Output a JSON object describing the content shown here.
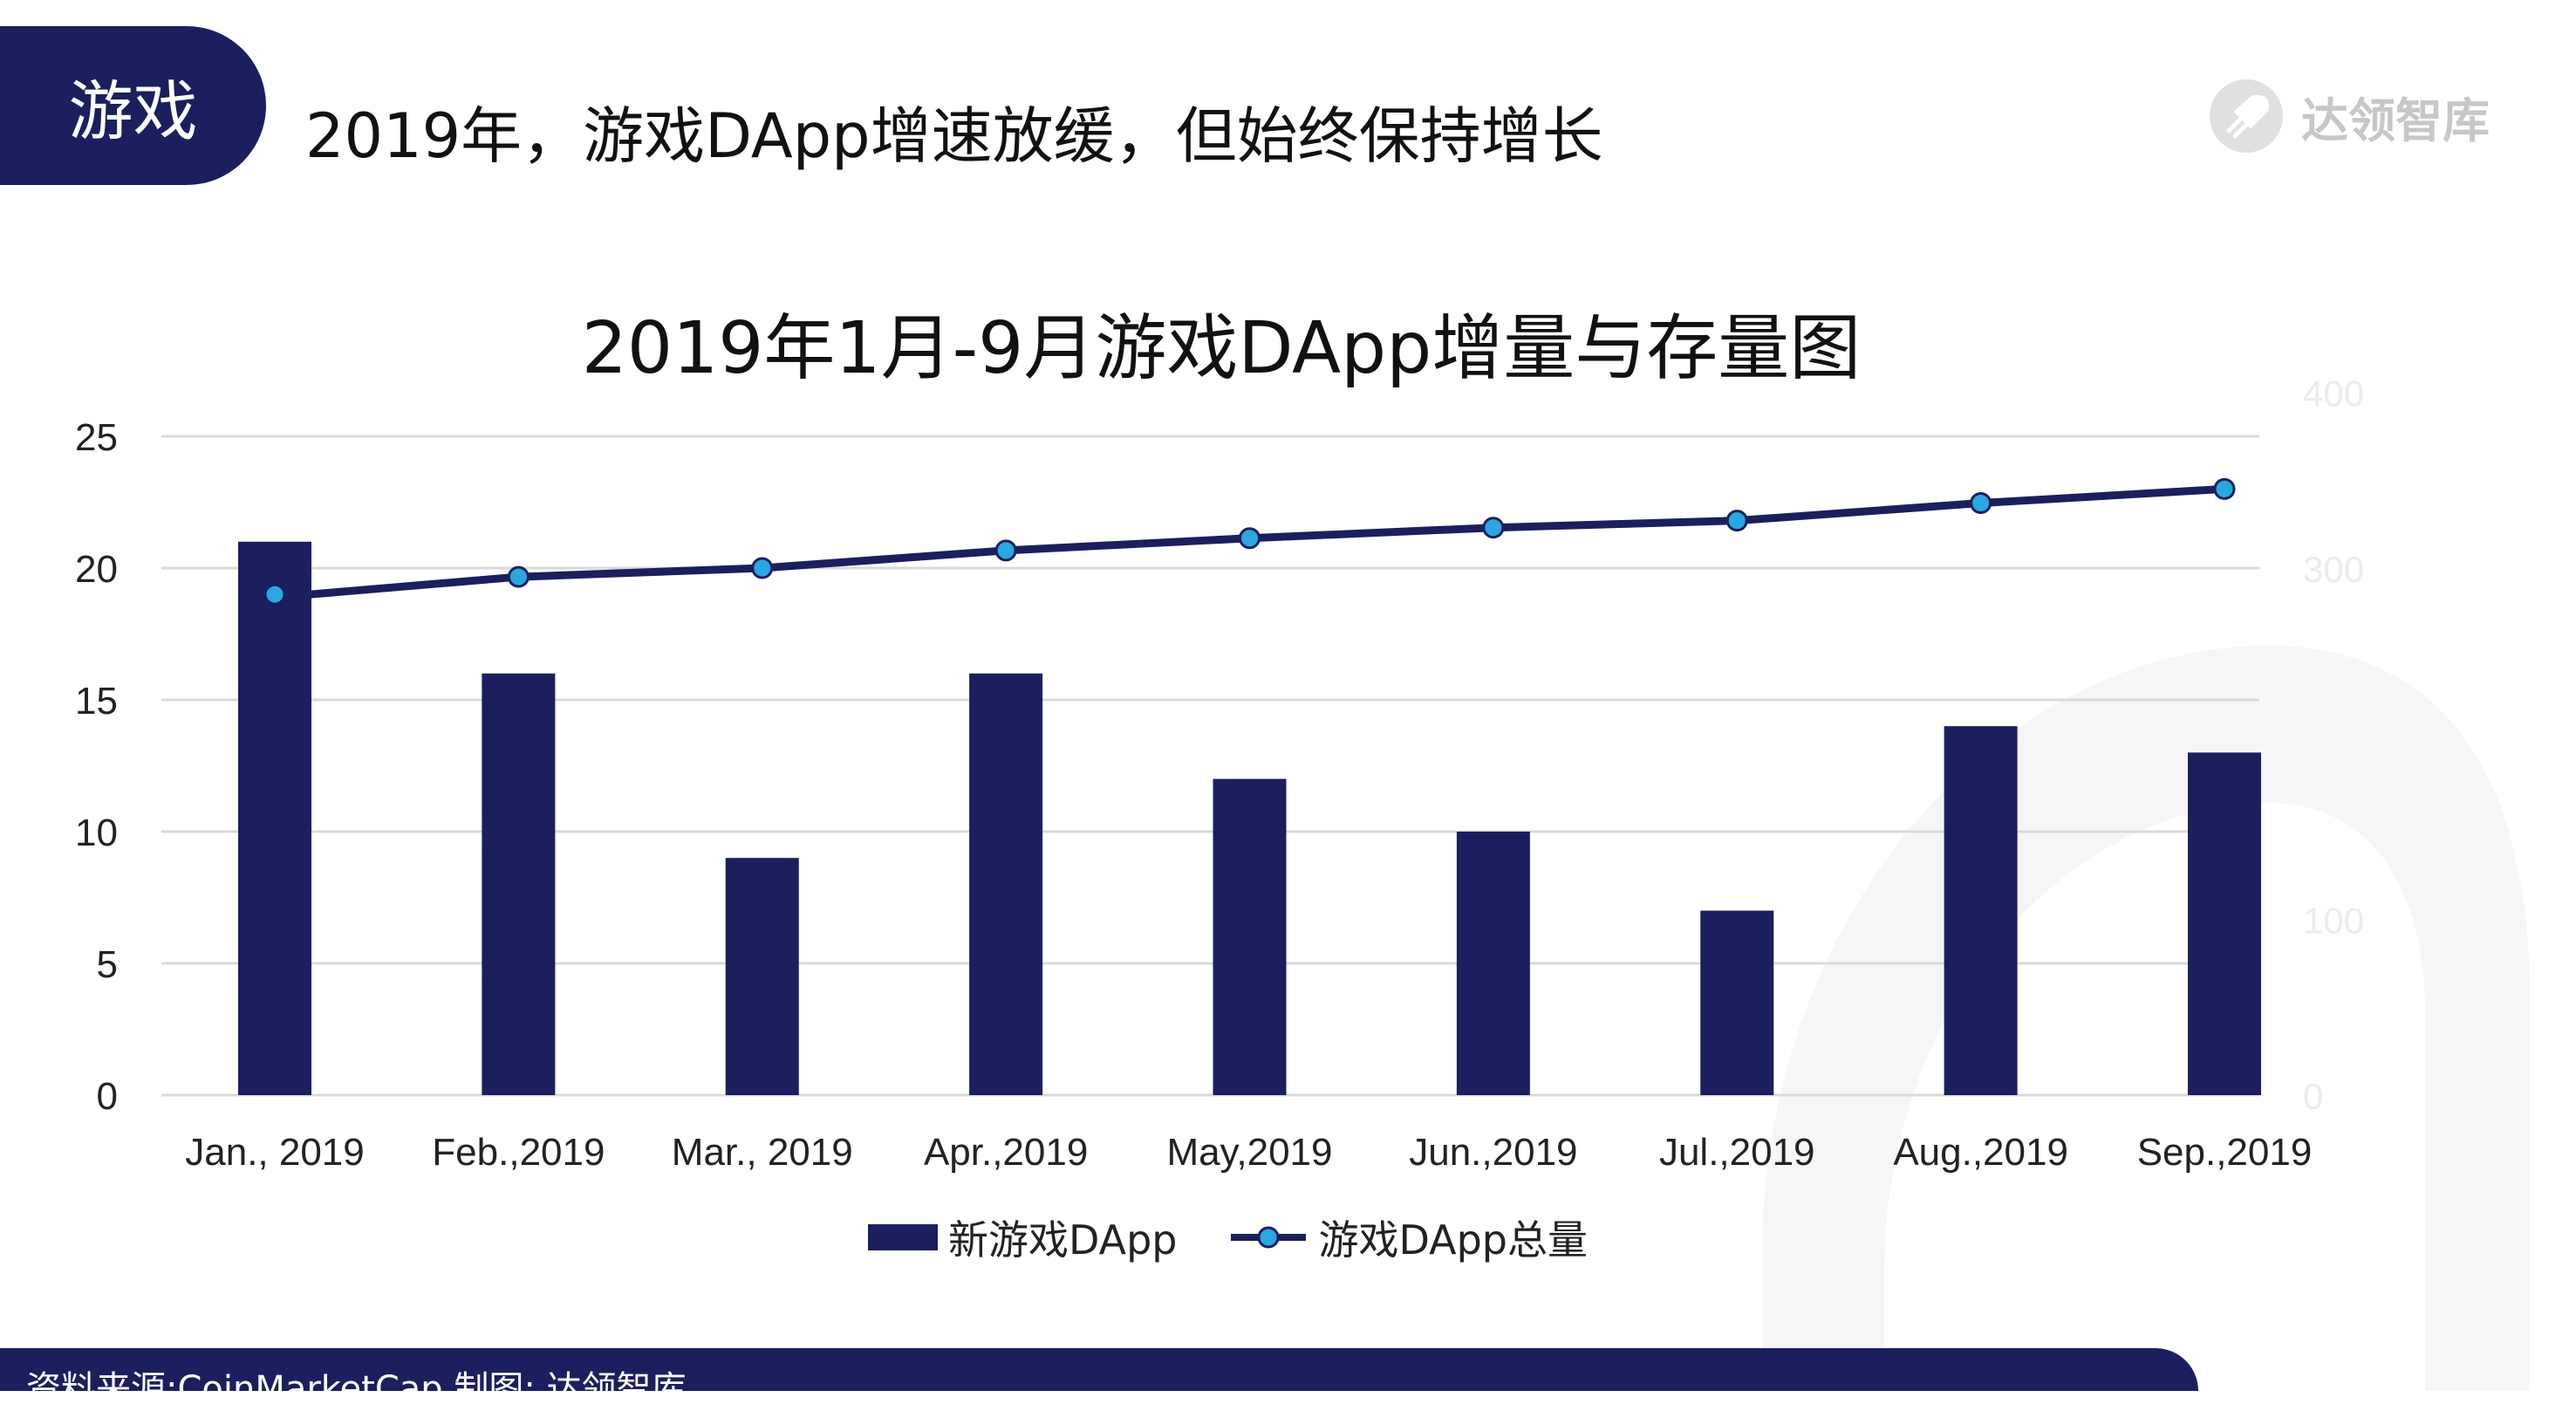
{
  "header": {
    "tag": "游戏",
    "headline": "2019年，游戏DApp增速放缓，但始终保持增长",
    "brand": "达领智库"
  },
  "colors": {
    "bar": "#1b1f5e",
    "line": "#1b1f5e",
    "marker": "#29a8e0",
    "grid": "#d9d9d9"
  },
  "chart_data": {
    "type": "bar",
    "title": "2019年1月-9月游戏DApp增量与存量图",
    "categories": [
      "Jan., 2019",
      "Feb.,2019",
      "Mar., 2019",
      "Apr.,2019",
      "May,2019",
      "Jun.,2019",
      "Jul.,2019",
      "Aug.,2019",
      "Sep.,2019"
    ],
    "series": [
      {
        "name": "新游戏DApp",
        "type": "bar",
        "axis": "left",
        "values": [
          21,
          16,
          9,
          16,
          12,
          10,
          7,
          14,
          13
        ]
      },
      {
        "name": "游戏DApp总量",
        "type": "line",
        "axis": "right",
        "values": [
          285,
          295,
          300,
          310,
          317,
          323,
          327,
          337,
          345
        ]
      }
    ],
    "yticks": [
      "0",
      "5",
      "10",
      "15",
      "20",
      "25"
    ],
    "ylim": [
      0,
      25
    ],
    "y2ticks": [
      "0",
      "100",
      "300",
      "400"
    ],
    "y2lim": [
      0,
      375
    ],
    "grid": true,
    "legend": "bottom"
  },
  "footer": {
    "source": "资料来源:CoinMarketCap 制图: 达领智库"
  }
}
